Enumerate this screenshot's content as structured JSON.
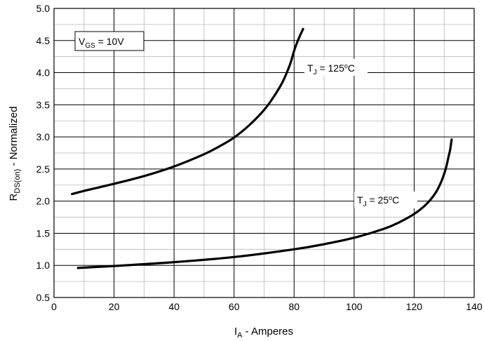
{
  "chart_data": {
    "type": "line",
    "xlabel": {
      "main": "I",
      "sub": "A",
      "rest": " - Amperes"
    },
    "ylabel": {
      "main": "R",
      "sub": "DS(on)",
      "rest": " - Normalized"
    },
    "xlim": [
      0,
      140
    ],
    "ylim": [
      0.5,
      5.0
    ],
    "x_ticks": [
      "0",
      "20",
      "40",
      "60",
      "80",
      "100",
      "120",
      "140"
    ],
    "y_ticks": [
      "0.5",
      "1.0",
      "1.5",
      "2.0",
      "2.5",
      "3.0",
      "3.5",
      "4.0",
      "4.5",
      "5.0"
    ],
    "x_major_step": 20,
    "x_minor_step": 10,
    "y_major_step": 0.5,
    "y_minor_step": 0.25,
    "grid": true,
    "annotation_box": {
      "main": "V",
      "sub": "GS",
      "rest": "  = 10V"
    },
    "series": [
      {
        "label": {
          "main": "T",
          "sub": "J",
          "rest": " = 125",
          "sup": "o",
          "tail": "C"
        },
        "x": [
          6,
          10,
          20,
          30,
          40,
          50,
          55,
          60,
          65,
          70,
          73,
          76,
          78,
          79,
          80,
          81,
          82,
          83
        ],
        "y": [
          2.11,
          2.16,
          2.27,
          2.39,
          2.54,
          2.73,
          2.85,
          2.99,
          3.18,
          3.42,
          3.61,
          3.84,
          4.05,
          4.18,
          4.34,
          4.47,
          4.58,
          4.68
        ]
      },
      {
        "label": {
          "main": "T",
          "sub": "J",
          "rest": " = 25",
          "sup": "o",
          "tail": "C"
        },
        "x": [
          8,
          20,
          40,
          60,
          80,
          90,
          100,
          110,
          115,
          120,
          124,
          127,
          129,
          130.5,
          131.5,
          132,
          132.3,
          132.5
        ],
        "y": [
          0.96,
          0.99,
          1.05,
          1.13,
          1.25,
          1.33,
          1.43,
          1.57,
          1.67,
          1.8,
          1.95,
          2.12,
          2.3,
          2.5,
          2.7,
          2.8,
          2.9,
          2.96
        ]
      }
    ]
  }
}
